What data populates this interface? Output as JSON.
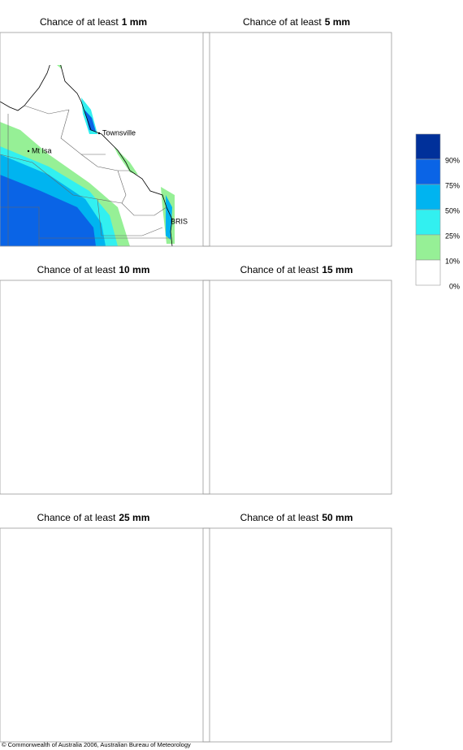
{
  "panels": [
    {
      "title": "Chance of at least",
      "amount": "1 mm"
    },
    {
      "title": "Chance of at least",
      "amount": "5 mm"
    },
    {
      "title": "Chance of at least",
      "amount": "10 mm"
    },
    {
      "title": "Chance of at least",
      "amount": "15 mm"
    },
    {
      "title": "Chance of at least",
      "amount": "25 mm"
    },
    {
      "title": "Chance of at least",
      "amount": "50 mm"
    }
  ],
  "places": [
    "Townsville",
    "Mt Isa",
    "BRIS"
  ],
  "legend": {
    "colors": [
      "#00309a",
      "#0a64e6",
      "#00b4f0",
      "#32f0f0",
      "#96f096",
      "#ffffff"
    ],
    "labels": [
      "90%",
      "75%",
      "50%",
      "25%",
      "10%",
      "0%"
    ]
  },
  "footer": "© Commonwealth of Australia 2006, Australian Bureau of Meteorology"
}
